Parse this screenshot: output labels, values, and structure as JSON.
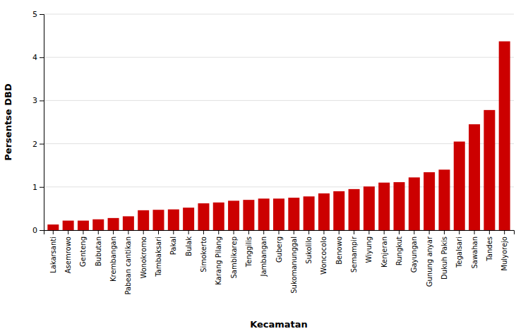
{
  "chart_data": {
    "type": "bar",
    "xlabel": "Kecamatan",
    "ylabel": "Persentse DBD",
    "categories": [
      "Lakarsanti",
      "Asemrowo",
      "Genteng",
      "Bubutan",
      "Krembangan",
      "Pabean cantikan",
      "Wonokromo",
      "Tambaksari",
      "Pakal",
      "Bulak",
      "Simokerto",
      "Karang Pilang",
      "Sambikarep",
      "Tenggilis",
      "Jambangan",
      "Guberg",
      "Sukomanunggal",
      "Sukolilo",
      "Woncocolo",
      "Benowo",
      "Semampir",
      "Wiyung",
      "Kenjeran",
      "Rungkut",
      "Gayungan",
      "Gunung anyar",
      "Dukuh Pakis",
      "Tegalsari",
      "Sawahan",
      "Tandes",
      "Mulyorejo"
    ],
    "values": [
      0.13,
      0.22,
      0.22,
      0.25,
      0.28,
      0.32,
      0.46,
      0.47,
      0.48,
      0.52,
      0.62,
      0.64,
      0.68,
      0.7,
      0.73,
      0.73,
      0.75,
      0.78,
      0.85,
      0.9,
      0.95,
      1.01,
      1.1,
      1.11,
      1.22,
      1.34,
      1.4,
      2.05,
      2.45,
      2.78,
      4.37
    ],
    "color": "#cc0000",
    "ylim": [
      0,
      5
    ],
    "yticks": [
      0,
      1,
      2,
      3,
      4,
      5
    ],
    "grid": true
  }
}
